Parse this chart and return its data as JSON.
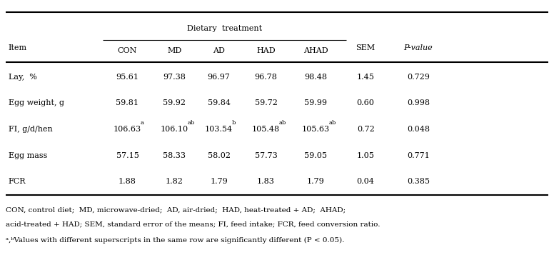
{
  "title": "Dietary  treatment",
  "headers_sub": [
    "CON",
    "MD",
    "AD",
    "HAD",
    "AHAD"
  ],
  "col_sem": "SEM",
  "col_pval": "P-value",
  "rows": [
    {
      "item": "Lay,  %",
      "values": [
        "95.61",
        "97.38",
        "96.97",
        "96.78",
        "98.48",
        "1.45",
        "0.729"
      ],
      "superscripts": [
        "",
        "",
        "",
        "",
        "",
        "",
        ""
      ]
    },
    {
      "item": "Egg weight, g",
      "values": [
        "59.81",
        "59.92",
        "59.84",
        "59.72",
        "59.99",
        "0.60",
        "0.998"
      ],
      "superscripts": [
        "",
        "",
        "",
        "",
        "",
        "",
        ""
      ]
    },
    {
      "item": "FI, g/d/hen",
      "values": [
        "106.63",
        "106.10",
        "103.54",
        "105.48",
        "105.63",
        "0.72",
        "0.048"
      ],
      "superscripts": [
        "a",
        "ab",
        "b",
        "ab",
        "ab",
        "",
        ""
      ]
    },
    {
      "item": "Egg mass",
      "values": [
        "57.15",
        "58.33",
        "58.02",
        "57.73",
        "59.05",
        "1.05",
        "0.771"
      ],
      "superscripts": [
        "",
        "",
        "",
        "",
        "",
        "",
        ""
      ]
    },
    {
      "item": "FCR",
      "values": [
        "1.88",
        "1.82",
        "1.79",
        "1.83",
        "1.79",
        "0.04",
        "0.385"
      ],
      "superscripts": [
        "",
        "",
        "",
        "",
        "",
        "",
        ""
      ]
    }
  ],
  "footnotes": [
    "CON, control diet;  MD, microwave-dried;  AD, air-dried;  HAD, heat-treated + AD;  AHAD;",
    "acid-treated + HAD; SEM, standard error of the means; FI, feed intake; FCR, feed conversion ratio.",
    "a,bValues with different superscripts in the same row are significantly different (P < 0.05)."
  ],
  "bg_color": "#ffffff",
  "text_color": "#000000",
  "font_size": 8.0,
  "fig_width": 7.76,
  "fig_height": 3.85,
  "dpi": 100
}
